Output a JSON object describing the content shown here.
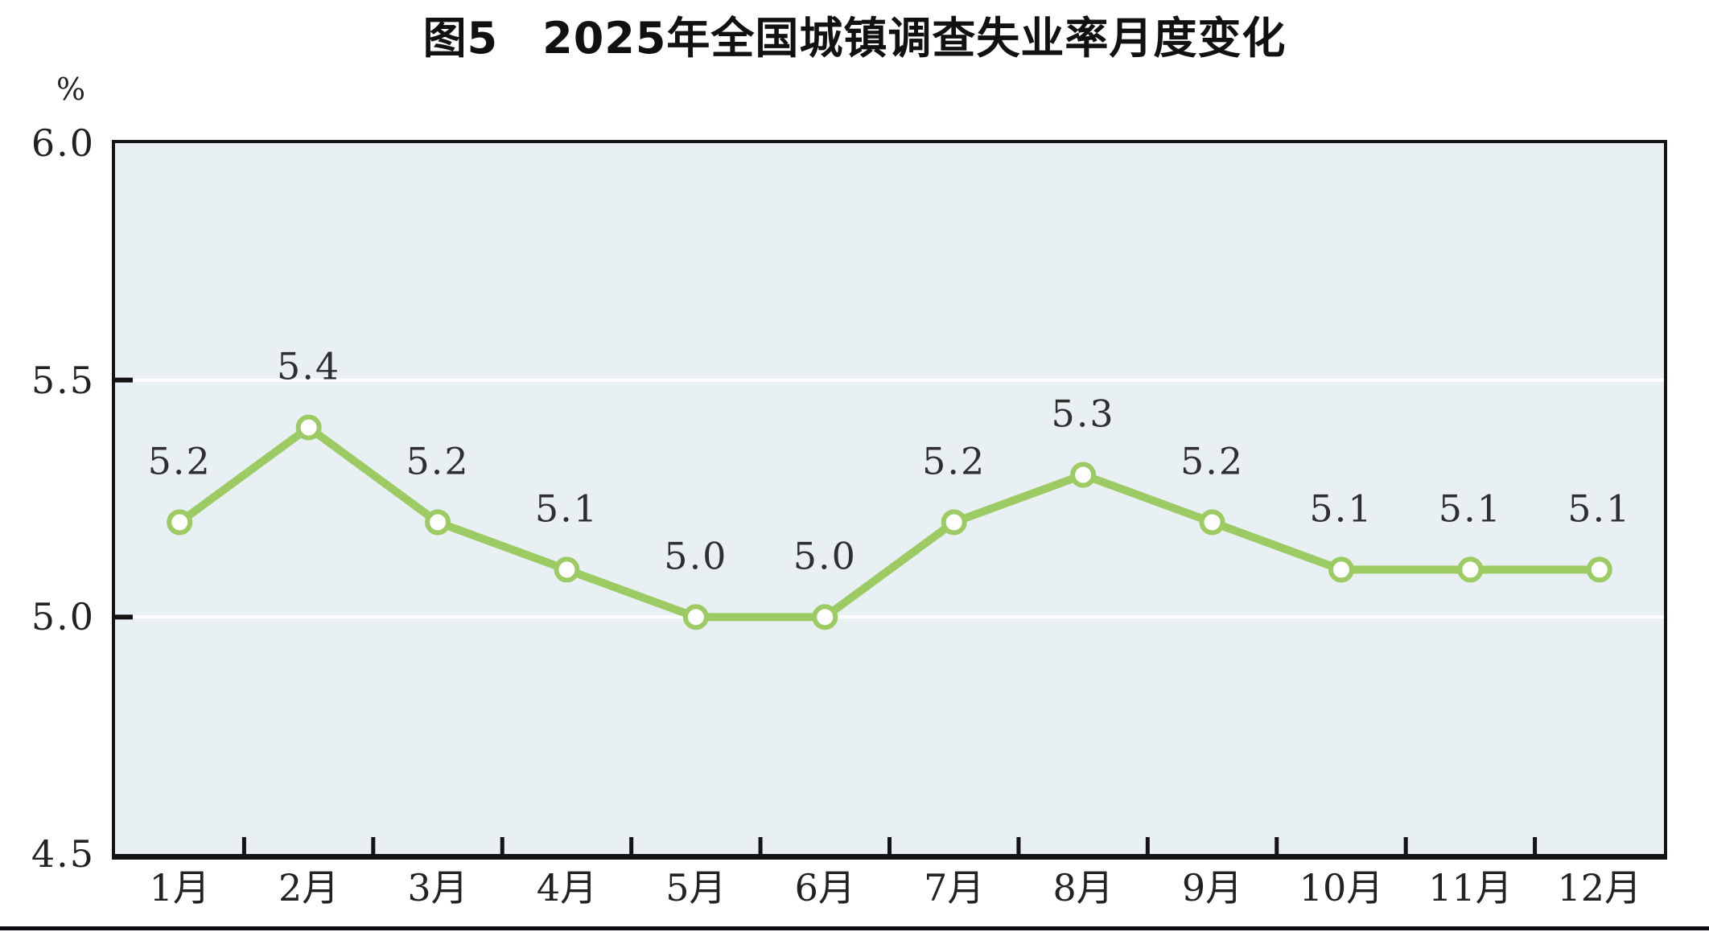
{
  "chart_data": {
    "type": "line",
    "title": "图5　2025年全国城镇调查失业率月度变化",
    "unit_label": "%",
    "xlabel": "",
    "ylabel": "%",
    "categories": [
      "1月",
      "2月",
      "3月",
      "4月",
      "5月",
      "6月",
      "7月",
      "8月",
      "9月",
      "10月",
      "11月",
      "12月"
    ],
    "values": [
      5.2,
      5.4,
      5.2,
      5.1,
      5.0,
      5.0,
      5.2,
      5.3,
      5.2,
      5.1,
      5.1,
      5.1
    ],
    "point_labels": [
      "5.2",
      "5.4",
      "5.2",
      "5.1",
      "5.0",
      "5.0",
      "5.2",
      "5.3",
      "5.2",
      "5.1",
      "5.1",
      "5.1"
    ],
    "ylim": [
      4.5,
      6.0
    ],
    "y_ticks": [
      {
        "value": 6.0,
        "label": "6.0"
      },
      {
        "value": 5.5,
        "label": "5.5"
      },
      {
        "value": 5.0,
        "label": "5.0"
      },
      {
        "value": 4.5,
        "label": "4.5"
      }
    ],
    "gridlines": [
      5.5,
      5.0
    ],
    "grid_on": true,
    "legend_position": "none",
    "colors": {
      "line": "#9bcb62",
      "marker_fill": "#ffffff",
      "plot_background": "#e8f0f3",
      "gridline": "#ffffff",
      "axis": "#141414",
      "point_label": "#2f2f2f",
      "tick_label": "#222222",
      "title": "#111111",
      "divider": "#0c0c13"
    }
  }
}
